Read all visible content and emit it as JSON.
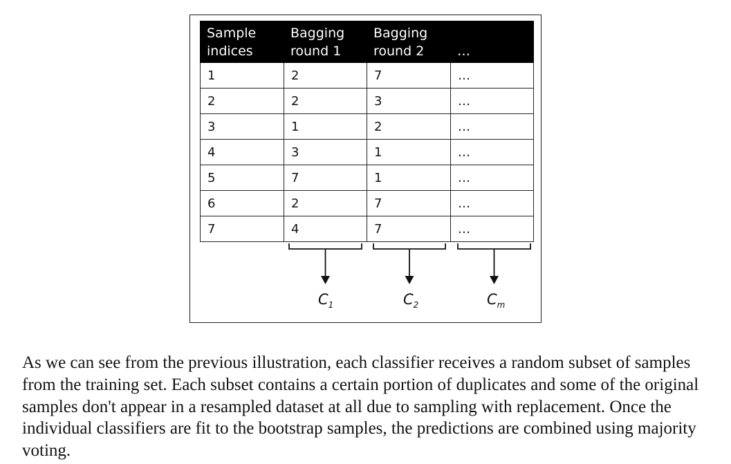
{
  "figure": {
    "table": {
      "headers": [
        [
          "Sample",
          "indices"
        ],
        [
          "Bagging",
          "round 1"
        ],
        [
          "Bagging",
          "round 2"
        ],
        [
          "",
          "…"
        ]
      ],
      "rows": [
        [
          "1",
          "2",
          "7",
          "…"
        ],
        [
          "2",
          "2",
          "3",
          "…"
        ],
        [
          "3",
          "1",
          "2",
          "…"
        ],
        [
          "4",
          "3",
          "1",
          "…"
        ],
        [
          "5",
          "7",
          "1",
          "…"
        ],
        [
          "6",
          "2",
          "7",
          "…"
        ],
        [
          "7",
          "4",
          "7",
          "…"
        ]
      ]
    },
    "classifiers": [
      {
        "base": "C",
        "sub": "1"
      },
      {
        "base": "C",
        "sub": "2"
      },
      {
        "base": "C",
        "sub": "m"
      }
    ]
  },
  "caption": "As we can see from the previous illustration, each classifier receives a random subset of samples from the training set. Each subset contains a certain portion of duplicates and some of the original samples don't appear in a resampled dataset at all due to sampling with replacement. Once the individual classifiers are fit to the bootstrap samples, the predictions are combined using majority voting."
}
